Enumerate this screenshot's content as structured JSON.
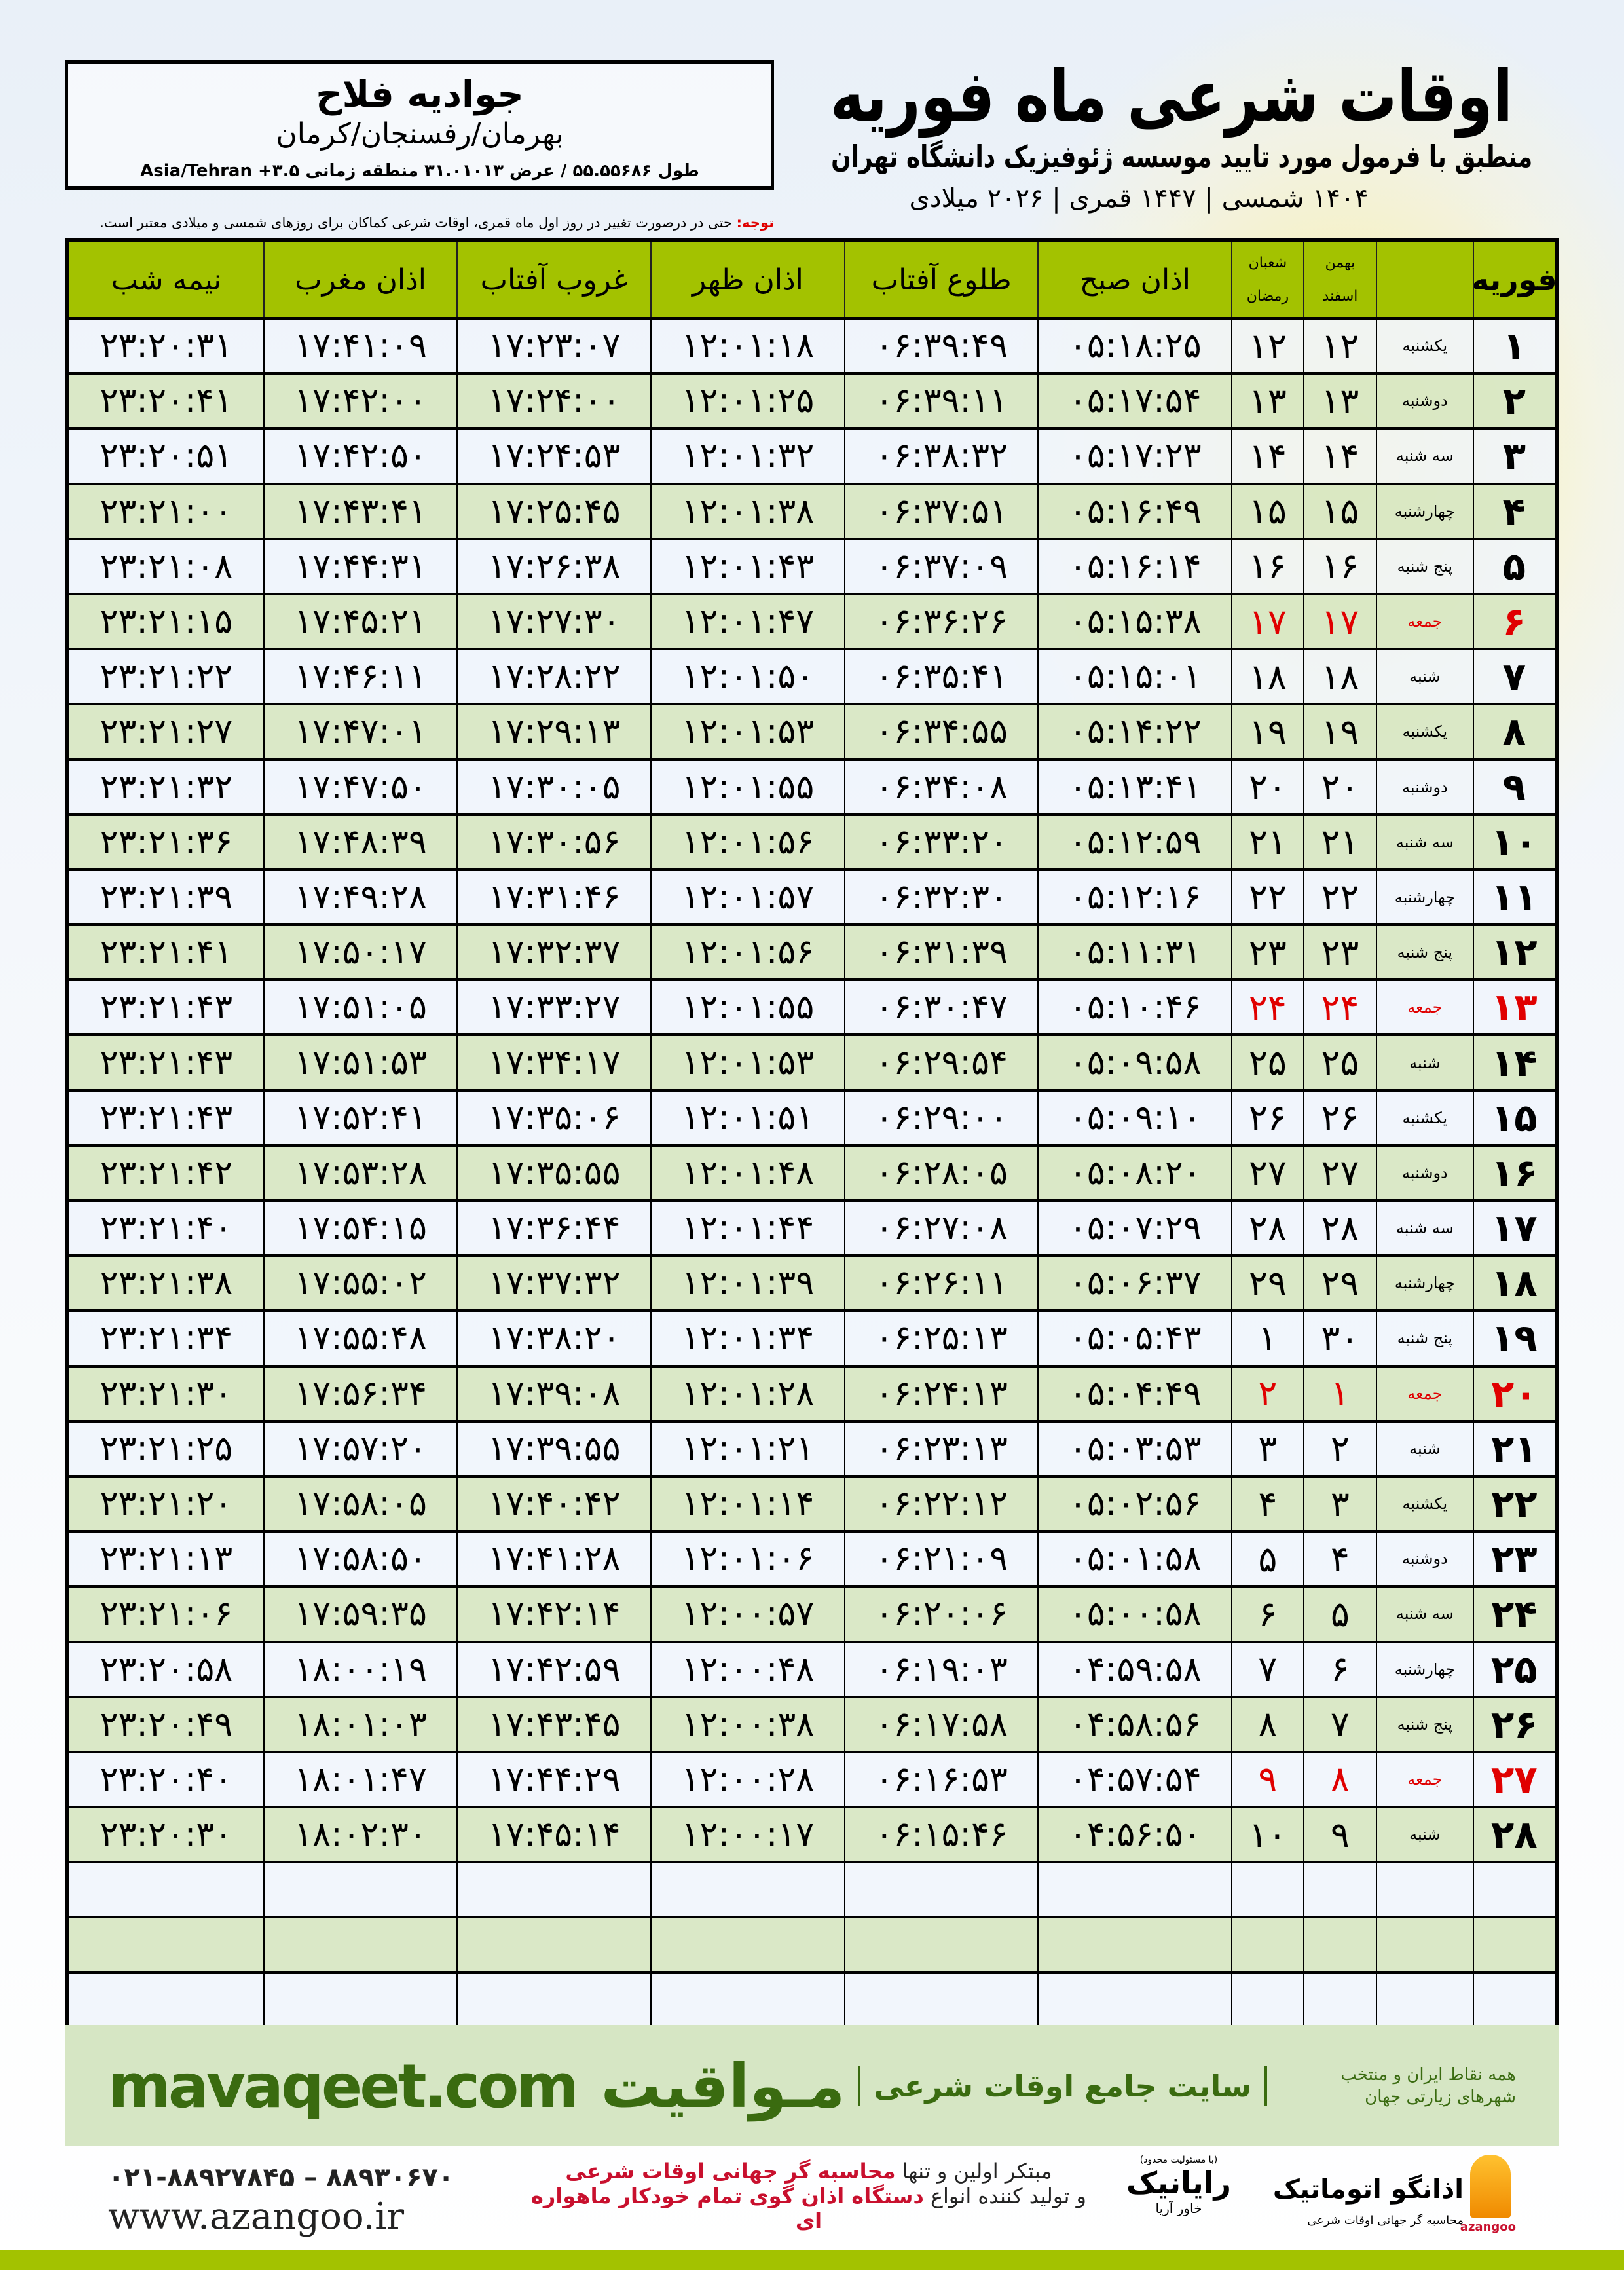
{
  "header": {
    "title": "اوقات شرعی ماه فوریه",
    "subtitle": "منطبق با فرمول مورد تایید موسسه ژئوفیزیک دانشگاه تهران",
    "dates": "۱۴۰۴ شمسی | ۱۴۴۷ قمری | ۲۰۲۶ میلادی"
  },
  "location": {
    "name": "جوادیه فلاح",
    "region": "بهرمان/رفسنجان/کرمان",
    "coords": "طول ۵۵.۵۵۶۸۶ / عرض ۳۱.۰۱۰۱۳ منطقه زمانی ۳.۵+ Asia/Tehran"
  },
  "note": {
    "label": "توجه:",
    "text": " حتی در درصورت تغییر در روز اول ماه قمری، اوقات شرعی کماکان برای روزهای شمسی و میلادی معتبر است."
  },
  "table": {
    "headers": {
      "day": "فوریه",
      "solar_top": "بهمن",
      "solar_bottom": "اسفند",
      "hijri_top": "شعبان",
      "hijri_bottom": "رمضان",
      "fajr": "اذان صبح",
      "sunrise": "طلوع آفتاب",
      "dhuhr": "اذان ظهر",
      "sunset": "غروب آفتاب",
      "maghrib": "اذان مغرب",
      "midnight": "نیمه شب"
    },
    "holiday_color": "#e00000",
    "rows": [
      {
        "day": "۱",
        "weekday": "یکشنبه",
        "solar": "۱۲",
        "hijri": "۱۲",
        "fajr": "۰۵:۱۸:۲۵",
        "sunrise": "۰۶:۳۹:۴۹",
        "dhuhr": "۱۲:۰۱:۱۸",
        "sunset": "۱۷:۲۳:۰۷",
        "maghrib": "۱۷:۴۱:۰۹",
        "midnight": "۲۳:۲۰:۳۱",
        "holiday": false
      },
      {
        "day": "۲",
        "weekday": "دوشنبه",
        "solar": "۱۳",
        "hijri": "۱۳",
        "fajr": "۰۵:۱۷:۵۴",
        "sunrise": "۰۶:۳۹:۱۱",
        "dhuhr": "۱۲:۰۱:۲۵",
        "sunset": "۱۷:۲۴:۰۰",
        "maghrib": "۱۷:۴۲:۰۰",
        "midnight": "۲۳:۲۰:۴۱",
        "holiday": false
      },
      {
        "day": "۳",
        "weekday": "سه شنبه",
        "solar": "۱۴",
        "hijri": "۱۴",
        "fajr": "۰۵:۱۷:۲۳",
        "sunrise": "۰۶:۳۸:۳۲",
        "dhuhr": "۱۲:۰۱:۳۲",
        "sunset": "۱۷:۲۴:۵۳",
        "maghrib": "۱۷:۴۲:۵۰",
        "midnight": "۲۳:۲۰:۵۱",
        "holiday": false
      },
      {
        "day": "۴",
        "weekday": "چهارشنبه",
        "solar": "۱۵",
        "hijri": "۱۵",
        "fajr": "۰۵:۱۶:۴۹",
        "sunrise": "۰۶:۳۷:۵۱",
        "dhuhr": "۱۲:۰۱:۳۸",
        "sunset": "۱۷:۲۵:۴۵",
        "maghrib": "۱۷:۴۳:۴۱",
        "midnight": "۲۳:۲۱:۰۰",
        "holiday": false
      },
      {
        "day": "۵",
        "weekday": "پنج شنبه",
        "solar": "۱۶",
        "hijri": "۱۶",
        "fajr": "۰۵:۱۶:۱۴",
        "sunrise": "۰۶:۳۷:۰۹",
        "dhuhr": "۱۲:۰۱:۴۳",
        "sunset": "۱۷:۲۶:۳۸",
        "maghrib": "۱۷:۴۴:۳۱",
        "midnight": "۲۳:۲۱:۰۸",
        "holiday": false
      },
      {
        "day": "۶",
        "weekday": "جمعه",
        "solar": "۱۷",
        "hijri": "۱۷",
        "fajr": "۰۵:۱۵:۳۸",
        "sunrise": "۰۶:۳۶:۲۶",
        "dhuhr": "۱۲:۰۱:۴۷",
        "sunset": "۱۷:۲۷:۳۰",
        "maghrib": "۱۷:۴۵:۲۱",
        "midnight": "۲۳:۲۱:۱۵",
        "holiday": true
      },
      {
        "day": "۷",
        "weekday": "شنبه",
        "solar": "۱۸",
        "hijri": "۱۸",
        "fajr": "۰۵:۱۵:۰۱",
        "sunrise": "۰۶:۳۵:۴۱",
        "dhuhr": "۱۲:۰۱:۵۰",
        "sunset": "۱۷:۲۸:۲۲",
        "maghrib": "۱۷:۴۶:۱۱",
        "midnight": "۲۳:۲۱:۲۲",
        "holiday": false
      },
      {
        "day": "۸",
        "weekday": "یکشنبه",
        "solar": "۱۹",
        "hijri": "۱۹",
        "fajr": "۰۵:۱۴:۲۲",
        "sunrise": "۰۶:۳۴:۵۵",
        "dhuhr": "۱۲:۰۱:۵۳",
        "sunset": "۱۷:۲۹:۱۳",
        "maghrib": "۱۷:۴۷:۰۱",
        "midnight": "۲۳:۲۱:۲۷",
        "holiday": false
      },
      {
        "day": "۹",
        "weekday": "دوشنبه",
        "solar": "۲۰",
        "hijri": "۲۰",
        "fajr": "۰۵:۱۳:۴۱",
        "sunrise": "۰۶:۳۴:۰۸",
        "dhuhr": "۱۲:۰۱:۵۵",
        "sunset": "۱۷:۳۰:۰۵",
        "maghrib": "۱۷:۴۷:۵۰",
        "midnight": "۲۳:۲۱:۳۲",
        "holiday": false
      },
      {
        "day": "۱۰",
        "weekday": "سه شنبه",
        "solar": "۲۱",
        "hijri": "۲۱",
        "fajr": "۰۵:۱۲:۵۹",
        "sunrise": "۰۶:۳۳:۲۰",
        "dhuhr": "۱۲:۰۱:۵۶",
        "sunset": "۱۷:۳۰:۵۶",
        "maghrib": "۱۷:۴۸:۳۹",
        "midnight": "۲۳:۲۱:۳۶",
        "holiday": false
      },
      {
        "day": "۱۱",
        "weekday": "چهارشنبه",
        "solar": "۲۲",
        "hijri": "۲۲",
        "fajr": "۰۵:۱۲:۱۶",
        "sunrise": "۰۶:۳۲:۳۰",
        "dhuhr": "۱۲:۰۱:۵۷",
        "sunset": "۱۷:۳۱:۴۶",
        "maghrib": "۱۷:۴۹:۲۸",
        "midnight": "۲۳:۲۱:۳۹",
        "holiday": false
      },
      {
        "day": "۱۲",
        "weekday": "پنج شنبه",
        "solar": "۲۳",
        "hijri": "۲۳",
        "fajr": "۰۵:۱۱:۳۱",
        "sunrise": "۰۶:۳۱:۳۹",
        "dhuhr": "۱۲:۰۱:۵۶",
        "sunset": "۱۷:۳۲:۳۷",
        "maghrib": "۱۷:۵۰:۱۷",
        "midnight": "۲۳:۲۱:۴۱",
        "holiday": false
      },
      {
        "day": "۱۳",
        "weekday": "جمعه",
        "solar": "۲۴",
        "hijri": "۲۴",
        "fajr": "۰۵:۱۰:۴۶",
        "sunrise": "۰۶:۳۰:۴۷",
        "dhuhr": "۱۲:۰۱:۵۵",
        "sunset": "۱۷:۳۳:۲۷",
        "maghrib": "۱۷:۵۱:۰۵",
        "midnight": "۲۳:۲۱:۴۳",
        "holiday": true
      },
      {
        "day": "۱۴",
        "weekday": "شنبه",
        "solar": "۲۵",
        "hijri": "۲۵",
        "fajr": "۰۵:۰۹:۵۸",
        "sunrise": "۰۶:۲۹:۵۴",
        "dhuhr": "۱۲:۰۱:۵۳",
        "sunset": "۱۷:۳۴:۱۷",
        "maghrib": "۱۷:۵۱:۵۳",
        "midnight": "۲۳:۲۱:۴۳",
        "holiday": false
      },
      {
        "day": "۱۵",
        "weekday": "یکشنبه",
        "solar": "۲۶",
        "hijri": "۲۶",
        "fajr": "۰۵:۰۹:۱۰",
        "sunrise": "۰۶:۲۹:۰۰",
        "dhuhr": "۱۲:۰۱:۵۱",
        "sunset": "۱۷:۳۵:۰۶",
        "maghrib": "۱۷:۵۲:۴۱",
        "midnight": "۲۳:۲۱:۴۳",
        "holiday": false
      },
      {
        "day": "۱۶",
        "weekday": "دوشنبه",
        "solar": "۲۷",
        "hijri": "۲۷",
        "fajr": "۰۵:۰۸:۲۰",
        "sunrise": "۰۶:۲۸:۰۵",
        "dhuhr": "۱۲:۰۱:۴۸",
        "sunset": "۱۷:۳۵:۵۵",
        "maghrib": "۱۷:۵۳:۲۸",
        "midnight": "۲۳:۲۱:۴۲",
        "holiday": false
      },
      {
        "day": "۱۷",
        "weekday": "سه شنبه",
        "solar": "۲۸",
        "hijri": "۲۸",
        "fajr": "۰۵:۰۷:۲۹",
        "sunrise": "۰۶:۲۷:۰۸",
        "dhuhr": "۱۲:۰۱:۴۴",
        "sunset": "۱۷:۳۶:۴۴",
        "maghrib": "۱۷:۵۴:۱۵",
        "midnight": "۲۳:۲۱:۴۰",
        "holiday": false
      },
      {
        "day": "۱۸",
        "weekday": "چهارشنبه",
        "solar": "۲۹",
        "hijri": "۲۹",
        "fajr": "۰۵:۰۶:۳۷",
        "sunrise": "۰۶:۲۶:۱۱",
        "dhuhr": "۱۲:۰۱:۳۹",
        "sunset": "۱۷:۳۷:۳۲",
        "maghrib": "۱۷:۵۵:۰۲",
        "midnight": "۲۳:۲۱:۳۸",
        "holiday": false
      },
      {
        "day": "۱۹",
        "weekday": "پنج شنبه",
        "solar": "۳۰",
        "hijri": "۱",
        "fajr": "۰۵:۰۵:۴۳",
        "sunrise": "۰۶:۲۵:۱۳",
        "dhuhr": "۱۲:۰۱:۳۴",
        "sunset": "۱۷:۳۸:۲۰",
        "maghrib": "۱۷:۵۵:۴۸",
        "midnight": "۲۳:۲۱:۳۴",
        "holiday": false
      },
      {
        "day": "۲۰",
        "weekday": "جمعه",
        "solar": "۱",
        "hijri": "۲",
        "fajr": "۰۵:۰۴:۴۹",
        "sunrise": "۰۶:۲۴:۱۳",
        "dhuhr": "۱۲:۰۱:۲۸",
        "sunset": "۱۷:۳۹:۰۸",
        "maghrib": "۱۷:۵۶:۳۴",
        "midnight": "۲۳:۲۱:۳۰",
        "holiday": true
      },
      {
        "day": "۲۱",
        "weekday": "شنبه",
        "solar": "۲",
        "hijri": "۳",
        "fajr": "۰۵:۰۳:۵۳",
        "sunrise": "۰۶:۲۳:۱۳",
        "dhuhr": "۱۲:۰۱:۲۱",
        "sunset": "۱۷:۳۹:۵۵",
        "maghrib": "۱۷:۵۷:۲۰",
        "midnight": "۲۳:۲۱:۲۵",
        "holiday": false
      },
      {
        "day": "۲۲",
        "weekday": "یکشنبه",
        "solar": "۳",
        "hijri": "۴",
        "fajr": "۰۵:۰۲:۵۶",
        "sunrise": "۰۶:۲۲:۱۲",
        "dhuhr": "۱۲:۰۱:۱۴",
        "sunset": "۱۷:۴۰:۴۲",
        "maghrib": "۱۷:۵۸:۰۵",
        "midnight": "۲۳:۲۱:۲۰",
        "holiday": false
      },
      {
        "day": "۲۳",
        "weekday": "دوشنبه",
        "solar": "۴",
        "hijri": "۵",
        "fajr": "۰۵:۰۱:۵۸",
        "sunrise": "۰۶:۲۱:۰۹",
        "dhuhr": "۱۲:۰۱:۰۶",
        "sunset": "۱۷:۴۱:۲۸",
        "maghrib": "۱۷:۵۸:۵۰",
        "midnight": "۲۳:۲۱:۱۳",
        "holiday": false
      },
      {
        "day": "۲۴",
        "weekday": "سه شنبه",
        "solar": "۵",
        "hijri": "۶",
        "fajr": "۰۵:۰۰:۵۸",
        "sunrise": "۰۶:۲۰:۰۶",
        "dhuhr": "۱۲:۰۰:۵۷",
        "sunset": "۱۷:۴۲:۱۴",
        "maghrib": "۱۷:۵۹:۳۵",
        "midnight": "۲۳:۲۱:۰۶",
        "holiday": false
      },
      {
        "day": "۲۵",
        "weekday": "چهارشنبه",
        "solar": "۶",
        "hijri": "۷",
        "fajr": "۰۴:۵۹:۵۸",
        "sunrise": "۰۶:۱۹:۰۳",
        "dhuhr": "۱۲:۰۰:۴۸",
        "sunset": "۱۷:۴۲:۵۹",
        "maghrib": "۱۸:۰۰:۱۹",
        "midnight": "۲۳:۲۰:۵۸",
        "holiday": false
      },
      {
        "day": "۲۶",
        "weekday": "پنج شنبه",
        "solar": "۷",
        "hijri": "۸",
        "fajr": "۰۴:۵۸:۵۶",
        "sunrise": "۰۶:۱۷:۵۸",
        "dhuhr": "۱۲:۰۰:۳۸",
        "sunset": "۱۷:۴۳:۴۵",
        "maghrib": "۱۸:۰۱:۰۳",
        "midnight": "۲۳:۲۰:۴۹",
        "holiday": false
      },
      {
        "day": "۲۷",
        "weekday": "جمعه",
        "solar": "۸",
        "hijri": "۹",
        "fajr": "۰۴:۵۷:۵۴",
        "sunrise": "۰۶:۱۶:۵۳",
        "dhuhr": "۱۲:۰۰:۲۸",
        "sunset": "۱۷:۴۴:۲۹",
        "maghrib": "۱۸:۰۱:۴۷",
        "midnight": "۲۳:۲۰:۴۰",
        "holiday": true
      },
      {
        "day": "۲۸",
        "weekday": "شنبه",
        "solar": "۹",
        "hijri": "۱۰",
        "fajr": "۰۴:۵۶:۵۰",
        "sunrise": "۰۶:۱۵:۴۶",
        "dhuhr": "۱۲:۰۰:۱۷",
        "sunset": "۱۷:۴۵:۱۴",
        "maghrib": "۱۸:۰۲:۳۰",
        "midnight": "۲۳:۲۰:۳۰",
        "holiday": false
      }
    ]
  },
  "footer": {
    "brand": "مـواقیت",
    "tagline": "سایت جامع اوقات شرعی",
    "sub": "همه نقاط ایران و منتخب شهرهای زیارتی جهان",
    "url": "mavaqeet.com",
    "phone": "۰۲۱-۸۸۹۲۷۸۴۵ – ۸۸۹۳۰۶۷۰",
    "web": "www.azangoo.ir",
    "promo1_a": "مبتکر اولین و تنها ",
    "promo1_b": "محاسبه گر جهانی اوقات شرعی",
    "promo2_a": "و تولید کننده انواع ",
    "promo2_b": "دستگاه اذان گوی تمام خودکار ماهواره ای",
    "raianik_note": "(با مسئولیت محدود)",
    "raianik": "رایانیک",
    "raianik_sub": "خاور آریا",
    "azangoo_name": "اذانگو اتوماتیک",
    "azangoo_sub": "محاسبه گر جهانی اوقات شرعی",
    "azangoo_en": "azangoo",
    "brand_color": "#3a6b10",
    "header_color": "#a3c200"
  }
}
